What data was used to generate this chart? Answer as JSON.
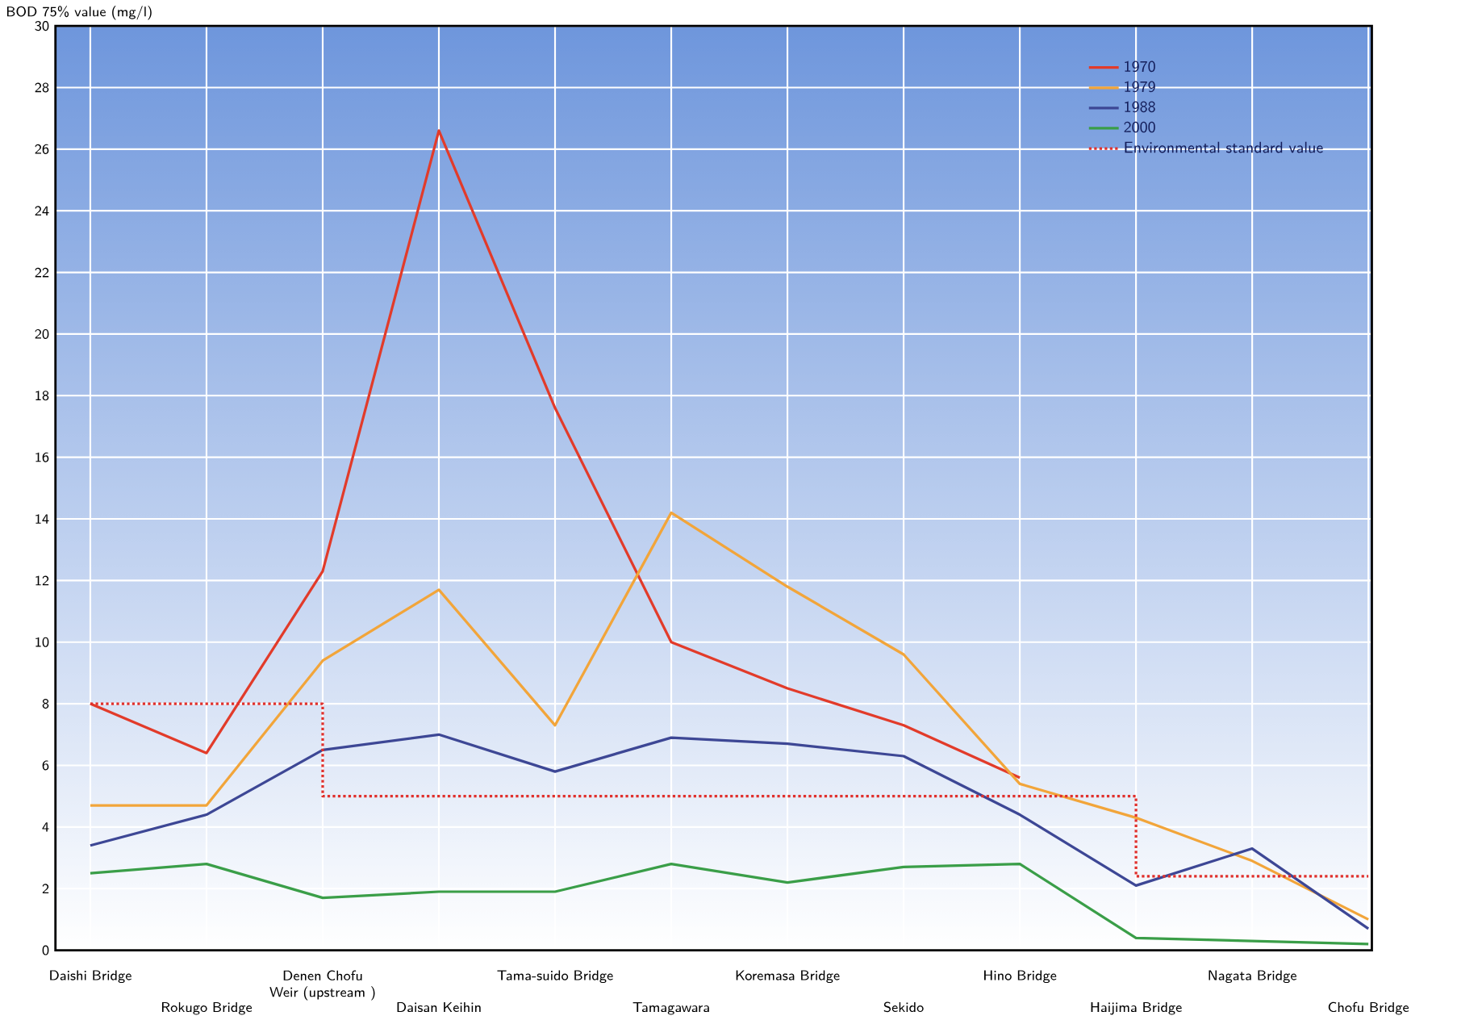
{
  "chart_data": {
    "type": "line",
    "ylabel": "BOD 75% value (mg/l)",
    "categories": [
      "Daishi Bridge",
      "Rokugo Bridge",
      "Denen Chofu Weir (upstream )",
      "Daisan Keihin",
      "Tama-suido Bridge",
      "Tamagawara",
      "Koremasa Bridge",
      "Sekido",
      "Hino Bridge",
      "Haijima Bridge",
      "Nagata Bridge",
      "Chofu Bridge"
    ],
    "series": [
      {
        "name": "1970",
        "color": "#e23b2a",
        "values": [
          8,
          6.4,
          12.3,
          26.6,
          17.6,
          10,
          8.5,
          7.3,
          5.6,
          null,
          null,
          null
        ]
      },
      {
        "name": "1979",
        "color": "#f2a53a",
        "values": [
          4.7,
          4.7,
          9.4,
          11.7,
          7.3,
          14.2,
          11.8,
          9.6,
          5.4,
          4.3,
          2.9,
          1.0
        ]
      },
      {
        "name": "1988",
        "color": "#3d4795",
        "values": [
          3.4,
          4.4,
          6.5,
          7.0,
          5.8,
          6.9,
          6.7,
          6.3,
          4.4,
          2.1,
          3.3,
          0.7
        ]
      },
      {
        "name": "2000",
        "color": "#3a9e48",
        "values": [
          2.5,
          2.8,
          1.7,
          1.9,
          1.9,
          2.8,
          2.2,
          2.7,
          2.8,
          0.4,
          0.3,
          0.2
        ]
      },
      {
        "name": "Environmental standard value",
        "color": "#e0302c",
        "type": "step",
        "line_style": "dotted",
        "values": [
          8,
          8,
          5,
          5,
          5,
          5,
          5,
          5,
          5,
          2.4,
          2.4,
          2.4
        ]
      }
    ],
    "ylim": [
      0,
      30
    ],
    "yticks": [
      0,
      2,
      4,
      6,
      8,
      10,
      12,
      14,
      16,
      18,
      20,
      22,
      24,
      26,
      28,
      30
    ],
    "grid": true,
    "legend": "top right"
  }
}
